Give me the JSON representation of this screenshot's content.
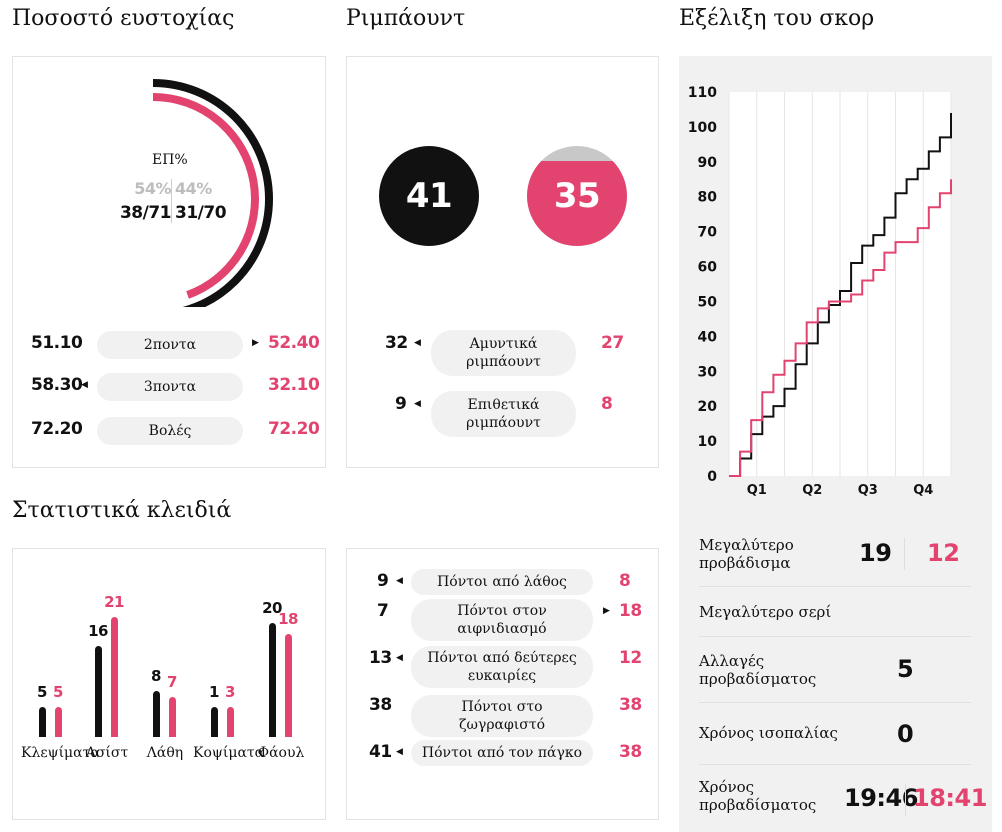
{
  "headers": {
    "shooting": "Ποσοστό ευστοχίας",
    "rebounds": "Ριμπάουντ",
    "score_progress": "Εξέλιξη του σκορ",
    "key_stats": "Στατιστικά κλειδιά"
  },
  "shooting": {
    "fg_label": "ΕΠ%",
    "team1_pct": "54%",
    "team2_pct": "44%",
    "team1_made": "38/71",
    "team2_made": "31/70",
    "team1_fraction": 0.54,
    "team2_fraction": 0.44,
    "rows": [
      {
        "label": "2ποντα",
        "team1": "51.10",
        "team2": "52.40",
        "leader": "team2"
      },
      {
        "label": "3ποντα",
        "team1": "58.30",
        "team2": "32.10",
        "leader": "team1"
      },
      {
        "label": "Βολές",
        "team1": "72.20",
        "team2": "72.20",
        "leader": "none"
      }
    ]
  },
  "rebounds": {
    "team1_total": "41",
    "team2_total": "35",
    "team2_fraction": 0.85,
    "rows": [
      {
        "label": "Αμυντικά ριμπάουντ",
        "team1": "32",
        "team2": "27"
      },
      {
        "label": "Επιθετικά ριμπάουντ",
        "team1": "9",
        "team2": "8"
      }
    ]
  },
  "key_stats": {
    "groups": [
      {
        "label": "Κλεψίματα",
        "team1": "5",
        "team2": "5",
        "v1": 5,
        "v2": 5
      },
      {
        "label": "Ασίστ",
        "team1": "16",
        "team2": "21",
        "v1": 16,
        "v2": 21
      },
      {
        "label": "Λάθη",
        "team1": "8",
        "team2": "7",
        "v1": 8,
        "v2": 7
      },
      {
        "label": "Κοψίματα",
        "team1": "1",
        "team2": "3",
        "v1": 1,
        "v2": 3
      },
      {
        "label": "Φάουλ",
        "team1": "20",
        "team2": "18",
        "v1": 20,
        "v2": 18
      }
    ]
  },
  "points": {
    "rows": [
      {
        "label": "Πόντοι από λάθος",
        "team1": "9",
        "team2": "8",
        "leader": "team1"
      },
      {
        "label": "Πόντοι στον αιφνιδιασμό",
        "team1": "7",
        "team2": "18",
        "leader": "team2"
      },
      {
        "label": "Πόντοι από δεύτερες ευκαιρίες",
        "team1": "13",
        "team2": "12",
        "leader": "team1"
      },
      {
        "label": "Πόντοι στο ζωγραφιστό",
        "team1": "38",
        "team2": "38",
        "leader": "none"
      },
      {
        "label": "Πόντοι από τον πάγκο",
        "team1": "41",
        "team2": "38",
        "leader": "team1"
      }
    ]
  },
  "game_stats": {
    "biggest_lead": {
      "label": "Μεγαλύτερο προβάδισμα",
      "team1": "19",
      "team2": "12"
    },
    "biggest_run": {
      "label": "Μεγαλύτερο σερί"
    },
    "lead_changes": {
      "label": "Αλλαγές προβαδίσματος",
      "value": "5"
    },
    "tied_time": {
      "label": "Χρόνος ισοπαλίας",
      "value": "0"
    },
    "lead_time": {
      "label": "Χρόνος προβαδίσματος",
      "team1": "19:46",
      "team2": "18:41"
    }
  },
  "colors": {
    "team1": "#111111",
    "team2": "#e2446f",
    "neutral": "#c8c8c8"
  },
  "chart_data": {
    "type": "line",
    "title": "Εξέλιξη του σκορ",
    "x_ticks": [
      "Q1",
      "Q2",
      "Q3",
      "Q4"
    ],
    "xlim": [
      0,
      40
    ],
    "y_ticks": [
      0,
      10,
      20,
      30,
      40,
      50,
      60,
      70,
      80,
      90,
      100,
      110
    ],
    "ylim": [
      0,
      110
    ],
    "grid": true,
    "series": [
      {
        "color": "#111111",
        "x": [
          0,
          2,
          4,
          6,
          8,
          10,
          12,
          14,
          16,
          18,
          20,
          22,
          24,
          26,
          28,
          30,
          32,
          34,
          36,
          38,
          40
        ],
        "y": [
          0,
          5,
          12,
          17,
          20,
          25,
          32,
          38,
          44,
          49,
          53,
          61,
          66,
          69,
          74,
          81,
          85,
          88,
          93,
          97,
          104
        ]
      },
      {
        "color": "#e2446f",
        "x": [
          0,
          2,
          4,
          6,
          8,
          10,
          12,
          14,
          16,
          18,
          20,
          22,
          24,
          26,
          28,
          30,
          32,
          34,
          36,
          38,
          40
        ],
        "y": [
          0,
          7,
          16,
          24,
          29,
          33,
          38,
          44,
          48,
          50,
          50,
          52,
          56,
          59,
          64,
          67,
          67,
          71,
          77,
          81,
          85
        ]
      }
    ]
  }
}
